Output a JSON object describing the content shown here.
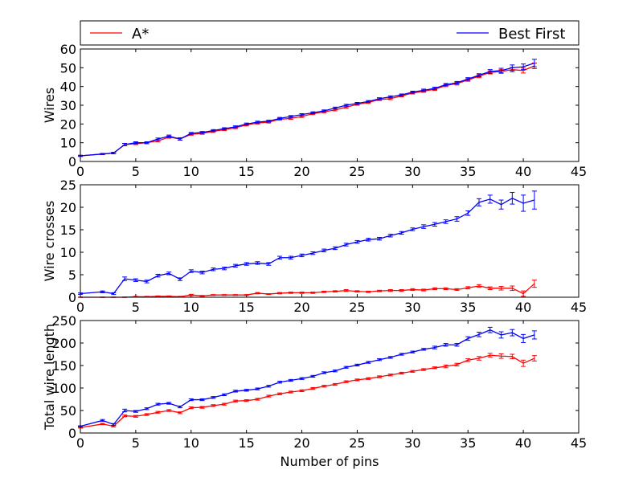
{
  "legend": {
    "entries": [
      {
        "label": "A*",
        "color": "#ff0000"
      },
      {
        "label": "Best First",
        "color": "#0000ff"
      }
    ]
  },
  "chart_data": [
    {
      "type": "line",
      "ylabel": "Wires",
      "xlabel": "",
      "xlim": [
        0,
        45
      ],
      "ylim": [
        0,
        60
      ],
      "xticks": [
        "0",
        "5",
        "10",
        "15",
        "20",
        "25",
        "30",
        "35",
        "40",
        "45"
      ],
      "yticks": [
        "0",
        "10",
        "20",
        "30",
        "40",
        "50",
        "60"
      ],
      "x": [
        0,
        2,
        3,
        4,
        5,
        6,
        7,
        8,
        9,
        10,
        11,
        12,
        13,
        14,
        15,
        16,
        17,
        18,
        19,
        20,
        21,
        22,
        23,
        24,
        25,
        26,
        27,
        28,
        29,
        30,
        31,
        32,
        33,
        34,
        35,
        36,
        37,
        38,
        39,
        40,
        41
      ],
      "series": [
        {
          "name": "A*",
          "color": "#ff0000",
          "values": [
            3,
            4,
            4.5,
            9,
            9.5,
            10,
            11,
            13,
            12,
            14.5,
            15,
            16,
            17,
            18,
            19.5,
            20.5,
            21,
            22.5,
            23,
            24,
            25.5,
            26.5,
            27.5,
            29,
            30.5,
            31.5,
            33,
            33.5,
            35,
            36.5,
            37.5,
            38.5,
            40.5,
            41.5,
            43.5,
            45.5,
            47.5,
            48,
            49,
            48.5,
            51
          ],
          "err": [
            0.3,
            0.3,
            0.4,
            0.6,
            0.5,
            0.5,
            0.5,
            0.6,
            0.6,
            0.5,
            0.5,
            0.5,
            0.5,
            0.5,
            0.5,
            0.5,
            0.5,
            0.5,
            0.5,
            0.5,
            0.5,
            0.5,
            0.5,
            0.5,
            0.5,
            0.5,
            0.5,
            0.5,
            0.5,
            0.5,
            0.6,
            0.6,
            0.6,
            0.7,
            0.7,
            0.8,
            0.8,
            1,
            1.2,
            1.3,
            1.5
          ]
        },
        {
          "name": "Best First",
          "color": "#0000ff",
          "values": [
            3,
            4,
            4.5,
            9,
            10,
            10,
            12,
            13.5,
            12,
            15,
            15.5,
            16.5,
            17.5,
            18.5,
            20,
            21,
            21.5,
            23,
            24,
            25,
            26,
            27,
            28.5,
            30,
            31,
            32,
            33.5,
            34.5,
            35.5,
            37,
            38,
            39,
            41,
            42,
            44,
            46,
            48,
            48.5,
            50,
            50.5,
            52.5
          ],
          "err": [
            0.3,
            0.3,
            0.4,
            0.6,
            0.5,
            0.5,
            0.5,
            0.6,
            0.6,
            0.5,
            0.5,
            0.5,
            0.5,
            0.5,
            0.5,
            0.5,
            0.5,
            0.5,
            0.5,
            0.5,
            0.5,
            0.5,
            0.5,
            0.5,
            0.5,
            0.5,
            0.5,
            0.5,
            0.5,
            0.5,
            0.6,
            0.6,
            0.6,
            0.7,
            0.7,
            0.8,
            1,
            1.2,
            1.5,
            1.5,
            2
          ]
        }
      ]
    },
    {
      "type": "line",
      "ylabel": "Wire crosses",
      "xlabel": "",
      "xlim": [
        0,
        45
      ],
      "ylim": [
        0,
        25
      ],
      "xticks": [
        "0",
        "5",
        "10",
        "15",
        "20",
        "25",
        "30",
        "35",
        "40",
        "45"
      ],
      "yticks": [
        "0",
        "5",
        "10",
        "15",
        "20",
        "25"
      ],
      "x": [
        0,
        2,
        3,
        4,
        5,
        6,
        7,
        8,
        9,
        10,
        11,
        12,
        13,
        14,
        15,
        16,
        17,
        18,
        19,
        20,
        21,
        22,
        23,
        24,
        25,
        26,
        27,
        28,
        29,
        30,
        31,
        32,
        33,
        34,
        35,
        36,
        37,
        38,
        39,
        40,
        41
      ],
      "series": [
        {
          "name": "A*",
          "color": "#ff0000",
          "values": [
            0,
            0,
            0,
            0,
            0.1,
            0.1,
            0.2,
            0.2,
            0.1,
            0.5,
            0.3,
            0.5,
            0.5,
            0.5,
            0.5,
            0.9,
            0.7,
            0.9,
            1,
            1,
            1,
            1.2,
            1.3,
            1.5,
            1.3,
            1.2,
            1.4,
            1.5,
            1.5,
            1.7,
            1.6,
            1.9,
            1.9,
            1.7,
            2.1,
            2.5,
            2,
            2,
            2,
            0.8,
            3
          ],
          "err": [
            0.05,
            0.05,
            0.05,
            0.05,
            0.1,
            0.1,
            0.1,
            0.1,
            0.1,
            0.15,
            0.1,
            0.1,
            0.1,
            0.1,
            0.1,
            0.15,
            0.1,
            0.15,
            0.15,
            0.15,
            0.15,
            0.15,
            0.15,
            0.2,
            0.15,
            0.15,
            0.15,
            0.2,
            0.2,
            0.2,
            0.2,
            0.2,
            0.2,
            0.2,
            0.25,
            0.3,
            0.3,
            0.4,
            0.5,
            0.6,
            0.8
          ]
        },
        {
          "name": "Best First",
          "color": "#0000ff",
          "values": [
            0.8,
            1.2,
            0.8,
            4.1,
            3.8,
            3.5,
            4.8,
            5.3,
            4,
            5.8,
            5.5,
            6.2,
            6.4,
            7,
            7.4,
            7.6,
            7.4,
            8.8,
            8.8,
            9.3,
            9.8,
            10.4,
            10.9,
            11.7,
            12.3,
            12.8,
            13,
            13.7,
            14.3,
            15.1,
            15.7,
            16.2,
            16.8,
            17.4,
            18.7,
            21.1,
            21.8,
            20.6,
            22,
            20.9,
            21.6
          ],
          "err": [
            0.15,
            0.2,
            0.2,
            0.4,
            0.3,
            0.3,
            0.3,
            0.3,
            0.3,
            0.3,
            0.3,
            0.3,
            0.3,
            0.3,
            0.3,
            0.3,
            0.3,
            0.3,
            0.3,
            0.3,
            0.3,
            0.3,
            0.3,
            0.3,
            0.3,
            0.3,
            0.3,
            0.3,
            0.3,
            0.3,
            0.4,
            0.4,
            0.4,
            0.5,
            0.5,
            0.8,
            0.9,
            1,
            1.3,
            1.8,
            2
          ]
        }
      ]
    },
    {
      "type": "line",
      "ylabel": "Total wire length",
      "xlabel": "Number of pins",
      "xlim": [
        0,
        45
      ],
      "ylim": [
        0,
        250
      ],
      "xticks": [
        "0",
        "5",
        "10",
        "15",
        "20",
        "25",
        "30",
        "35",
        "40",
        "45"
      ],
      "yticks": [
        "0",
        "50",
        "100",
        "150",
        "200",
        "250"
      ],
      "x": [
        0,
        2,
        3,
        4,
        5,
        6,
        7,
        8,
        9,
        10,
        11,
        12,
        13,
        14,
        15,
        16,
        17,
        18,
        19,
        20,
        21,
        22,
        23,
        24,
        25,
        26,
        27,
        28,
        29,
        30,
        31,
        32,
        33,
        34,
        35,
        36,
        37,
        38,
        39,
        40,
        41
      ],
      "series": [
        {
          "name": "A*",
          "color": "#ff0000",
          "values": [
            12,
            20,
            15,
            38,
            37,
            41,
            46,
            50,
            45,
            56,
            57,
            61,
            64,
            71,
            72,
            75,
            82,
            87,
            91,
            94,
            99,
            104,
            108,
            114,
            118,
            121,
            125,
            129,
            133,
            137,
            141,
            145,
            148,
            152,
            162,
            166,
            173,
            171,
            170,
            155,
            166
          ],
          "err": [
            1,
            1.5,
            1.5,
            2,
            2,
            2,
            2,
            2,
            2,
            2,
            2,
            2,
            2,
            2,
            2,
            2,
            2,
            2,
            2,
            2,
            2,
            2,
            2,
            2,
            2,
            2,
            2,
            2,
            2,
            2,
            2,
            2,
            3,
            3,
            3,
            4,
            4,
            5,
            5,
            7,
            6
          ]
        },
        {
          "name": "Best First",
          "color": "#0000ff",
          "values": [
            15,
            28,
            19,
            50,
            48,
            54,
            64,
            66,
            58,
            74,
            74,
            79,
            85,
            93,
            95,
            98,
            104,
            113,
            117,
            121,
            126,
            134,
            138,
            146,
            151,
            157,
            163,
            168,
            175,
            180,
            186,
            190,
            196,
            196,
            210,
            219,
            229,
            218,
            223,
            210,
            218
          ],
          "err": [
            1,
            2,
            2,
            3,
            2,
            2,
            2,
            2,
            2,
            2,
            2,
            2,
            2,
            2,
            2,
            2,
            2,
            2,
            2,
            2,
            2,
            2,
            2,
            2,
            2,
            2,
            2,
            2,
            2,
            2,
            2,
            3,
            3,
            3,
            4,
            5,
            6,
            7,
            7,
            9,
            9
          ]
        }
      ]
    }
  ]
}
